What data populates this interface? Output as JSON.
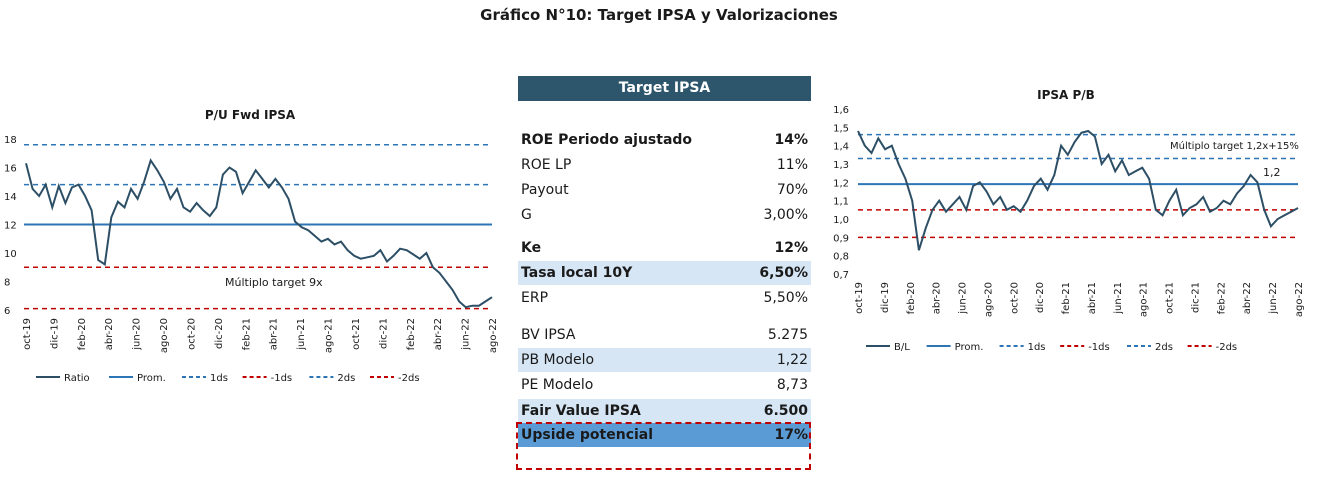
{
  "page_title": "Gráfico N°10: Target IPSA y Valorizaciones",
  "table": {
    "header": "Target IPSA",
    "rows": [
      {
        "label": "ROE Periodo ajustado",
        "value": "14%",
        "bold": true
      },
      {
        "label": "ROE LP",
        "value": "11%"
      },
      {
        "label": "Payout",
        "value": "70%"
      },
      {
        "label": "G",
        "value": "3,00%"
      },
      {
        "label": "Ke",
        "value": "12%",
        "bold": true
      },
      {
        "label": "Tasa local 10Y",
        "value": "6,50%",
        "bold": true,
        "highlight": "light"
      },
      {
        "label": "ERP",
        "value": "5,50%"
      },
      {
        "label": "BV IPSA",
        "value": "5.275"
      },
      {
        "label": "PB Modelo",
        "value": "1,22",
        "highlight": "light"
      },
      {
        "label": "PE Modelo",
        "value": "8,73"
      },
      {
        "label": "Fair Value IPSA",
        "value": "6.500",
        "bold": true,
        "highlight": "light"
      },
      {
        "label": "Upside potencial",
        "value": "17%",
        "bold": true,
        "highlight": "mid"
      }
    ]
  },
  "chart_data": [
    {
      "type": "line",
      "title": "P/U  Fwd IPSA",
      "xlabel": "",
      "ylabel": "",
      "ylim": [
        6,
        18
      ],
      "y_ticks": [
        6,
        8,
        10,
        12,
        14,
        16,
        18
      ],
      "x_ticks": [
        "oct-19",
        "dic-19",
        "feb-20",
        "abr-20",
        "jun-20",
        "ago-20",
        "oct-20",
        "dic-20",
        "feb-21",
        "abr-21",
        "jun-21",
        "ago-21",
        "oct-21",
        "dic-21",
        "feb-22",
        "abr-22",
        "jun-22",
        "ago-22"
      ],
      "grid": false,
      "legend_position": "bottom",
      "legend": [
        "Ratio",
        "Prom.",
        "1ds",
        "-1ds",
        "2ds",
        "-2ds"
      ],
      "annotation": "Múltiplo target 9x",
      "series": [
        {
          "name": "Ratio",
          "kind": "line",
          "color": "#2d4f66",
          "values": [
            16.3,
            14.5,
            14.0,
            14.8,
            13.2,
            14.7,
            13.5,
            14.6,
            14.8,
            14.0,
            13.0,
            9.5,
            9.2,
            12.5,
            13.6,
            13.2,
            14.5,
            13.8,
            15.0,
            16.5,
            15.8,
            15.0,
            13.8,
            14.5,
            13.2,
            12.9,
            13.5,
            13.0,
            12.6,
            13.2,
            15.5,
            16.0,
            15.7,
            14.2,
            15.0,
            15.8,
            15.2,
            14.6,
            15.2,
            14.6,
            13.8,
            12.2,
            11.8,
            11.6,
            11.2,
            10.8,
            11.0,
            10.6,
            10.8,
            10.2,
            9.8,
            9.6,
            9.7,
            9.8,
            10.2,
            9.4,
            9.8,
            10.3,
            10.2,
            9.9,
            9.6,
            10.0,
            9.0,
            8.6,
            8.0,
            7.4,
            6.6,
            6.2,
            6.3,
            6.3,
            6.6,
            6.9
          ]
        },
        {
          "name": "Prom.",
          "kind": "constant",
          "value": 12.0,
          "color": "#2e75b6"
        },
        {
          "name": "1ds",
          "kind": "constant",
          "value": 14.8,
          "color": "#2e75b6",
          "dashed": true
        },
        {
          "name": "-1ds",
          "kind": "constant",
          "value": 9.0,
          "color": "#c00000",
          "dashed": true
        },
        {
          "name": "2ds",
          "kind": "constant",
          "value": 17.6,
          "color": "#2e75b6",
          "dashed": true
        },
        {
          "name": "-2ds",
          "kind": "constant",
          "value": 6.1,
          "color": "#c00000",
          "dashed": true
        }
      ]
    },
    {
      "type": "line",
      "title": "IPSA  P/B",
      "xlabel": "",
      "ylabel": "",
      "ylim": [
        0.7,
        1.6
      ],
      "y_ticks": [
        "0,7",
        "0,8",
        "0,9",
        "1,0",
        "1,1",
        "1,2",
        "1,3",
        "1,4",
        "1,5",
        "1,6"
      ],
      "x_ticks": [
        "oct-19",
        "dic-19",
        "feb-20",
        "abr-20",
        "jun-20",
        "ago-20",
        "oct-20",
        "dic-20",
        "feb-21",
        "abr-21",
        "jun-21",
        "ago-21",
        "oct-21",
        "dic-21",
        "feb-22",
        "abr-22",
        "jun-22",
        "ago-22"
      ],
      "grid": false,
      "legend_position": "bottom",
      "legend": [
        "B/L",
        "Prom.",
        "1ds",
        "-1ds",
        "2ds",
        "-2ds"
      ],
      "annotations": [
        "Múltiplo target 1,2x+15%",
        "1,2"
      ],
      "series": [
        {
          "name": "B/L",
          "kind": "line",
          "color": "#2d4f66",
          "values": [
            1.48,
            1.4,
            1.36,
            1.44,
            1.38,
            1.4,
            1.3,
            1.22,
            1.1,
            0.83,
            0.95,
            1.05,
            1.1,
            1.04,
            1.08,
            1.12,
            1.05,
            1.18,
            1.2,
            1.15,
            1.08,
            1.12,
            1.05,
            1.07,
            1.04,
            1.1,
            1.18,
            1.22,
            1.16,
            1.24,
            1.4,
            1.35,
            1.42,
            1.47,
            1.48,
            1.45,
            1.3,
            1.35,
            1.26,
            1.32,
            1.24,
            1.26,
            1.28,
            1.22,
            1.05,
            1.02,
            1.1,
            1.16,
            1.02,
            1.06,
            1.08,
            1.12,
            1.04,
            1.06,
            1.1,
            1.08,
            1.14,
            1.18,
            1.24,
            1.2,
            1.05,
            0.96,
            1.0,
            1.02,
            1.04,
            1.06
          ]
        },
        {
          "name": "Prom.",
          "kind": "constant",
          "value": 1.19,
          "color": "#2e75b6"
        },
        {
          "name": "1ds",
          "kind": "constant",
          "value": 1.33,
          "color": "#2e75b6",
          "dashed": true
        },
        {
          "name": "-1ds",
          "kind": "constant",
          "value": 1.05,
          "color": "#c00000",
          "dashed": true
        },
        {
          "name": "2ds",
          "kind": "constant",
          "value": 1.46,
          "color": "#2e75b6",
          "dashed": true
        },
        {
          "name": "-2ds",
          "kind": "constant",
          "value": 0.9,
          "color": "#c00000",
          "dashed": true
        }
      ]
    }
  ]
}
